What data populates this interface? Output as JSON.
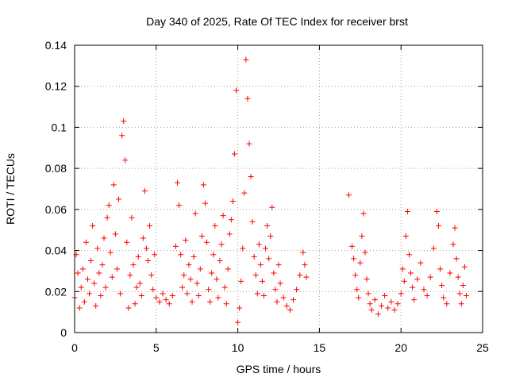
{
  "chart_data": {
    "type": "scatter",
    "title": "Day 340 of 2025, Rate Of TEC Index for receiver brst",
    "xlabel": "GPS time / hours",
    "ylabel": "ROTI / TECUs",
    "xlim": [
      0,
      25
    ],
    "ylim": [
      0,
      0.14
    ],
    "x_ticks": [
      0,
      5,
      10,
      15,
      20,
      25
    ],
    "x_tick_labels": [
      "0",
      "5",
      "10",
      "15",
      "20",
      "25"
    ],
    "y_ticks": [
      0,
      0.02,
      0.04,
      0.06,
      0.08,
      0.1,
      0.12,
      0.14
    ],
    "y_tick_labels": [
      "0",
      "0.02",
      "0.04",
      "0.06",
      "0.08",
      "0.1",
      "0.12",
      "0.14"
    ],
    "grid": true,
    "marker": "plus",
    "color": "#ff0000",
    "series": [
      {
        "points": [
          [
            0.0,
            0.017
          ],
          [
            0.1,
            0.038
          ],
          [
            0.2,
            0.029
          ],
          [
            0.3,
            0.012
          ],
          [
            0.4,
            0.022
          ],
          [
            0.5,
            0.031
          ],
          [
            0.6,
            0.015
          ],
          [
            0.7,
            0.044
          ],
          [
            0.8,
            0.026
          ],
          [
            0.9,
            0.019
          ],
          [
            1.0,
            0.035
          ],
          [
            1.1,
            0.052
          ],
          [
            1.2,
            0.024
          ],
          [
            1.3,
            0.013
          ],
          [
            1.4,
            0.041
          ],
          [
            1.5,
            0.029
          ],
          [
            1.6,
            0.018
          ],
          [
            1.7,
            0.033
          ],
          [
            1.8,
            0.046
          ],
          [
            1.9,
            0.022
          ],
          [
            2.0,
            0.056
          ],
          [
            2.1,
            0.062
          ],
          [
            2.2,
            0.039
          ],
          [
            2.3,
            0.027
          ],
          [
            2.4,
            0.072
          ],
          [
            2.5,
            0.048
          ],
          [
            2.6,
            0.031
          ],
          [
            2.7,
            0.065
          ],
          [
            2.8,
            0.019
          ],
          [
            2.9,
            0.096
          ],
          [
            3.0,
            0.103
          ],
          [
            3.1,
            0.084
          ],
          [
            3.2,
            0.044
          ],
          [
            3.3,
            0.012
          ],
          [
            3.4,
            0.028
          ],
          [
            3.5,
            0.056
          ],
          [
            3.6,
            0.033
          ],
          [
            3.7,
            0.014
          ],
          [
            3.8,
            0.022
          ],
          [
            3.9,
            0.037
          ],
          [
            4.0,
            0.024
          ],
          [
            4.1,
            0.018
          ],
          [
            4.2,
            0.046
          ],
          [
            4.3,
            0.069
          ],
          [
            4.4,
            0.041
          ],
          [
            4.5,
            0.035
          ],
          [
            4.6,
            0.052
          ],
          [
            4.7,
            0.028
          ],
          [
            4.8,
            0.021
          ],
          [
            4.9,
            0.038
          ],
          [
            5.0,
            0.017
          ],
          [
            5.2,
            0.015
          ],
          [
            5.4,
            0.019
          ],
          [
            5.6,
            0.016
          ],
          [
            5.8,
            0.014
          ],
          [
            6.0,
            0.018
          ],
          [
            6.2,
            0.042
          ],
          [
            6.3,
            0.073
          ],
          [
            6.4,
            0.062
          ],
          [
            6.5,
            0.038
          ],
          [
            6.6,
            0.022
          ],
          [
            6.7,
            0.028
          ],
          [
            6.8,
            0.045
          ],
          [
            6.9,
            0.019
          ],
          [
            7.0,
            0.033
          ],
          [
            7.1,
            0.026
          ],
          [
            7.2,
            0.015
          ],
          [
            7.3,
            0.037
          ],
          [
            7.4,
            0.058
          ],
          [
            7.5,
            0.024
          ],
          [
            7.6,
            0.018
          ],
          [
            7.7,
            0.031
          ],
          [
            7.8,
            0.047
          ],
          [
            7.9,
            0.072
          ],
          [
            8.0,
            0.063
          ],
          [
            8.1,
            0.044
          ],
          [
            8.2,
            0.021
          ],
          [
            8.3,
            0.015
          ],
          [
            8.4,
            0.029
          ],
          [
            8.5,
            0.038
          ],
          [
            8.6,
            0.052
          ],
          [
            8.7,
            0.026
          ],
          [
            8.8,
            0.017
          ],
          [
            8.9,
            0.035
          ],
          [
            9.0,
            0.043
          ],
          [
            9.1,
            0.057
          ],
          [
            9.2,
            0.022
          ],
          [
            9.3,
            0.014
          ],
          [
            9.4,
            0.031
          ],
          [
            9.5,
            0.048
          ],
          [
            9.6,
            0.055
          ],
          [
            9.7,
            0.064
          ],
          [
            9.8,
            0.087
          ],
          [
            9.9,
            0.118
          ],
          [
            10.0,
            0.005
          ],
          [
            10.1,
            0.012
          ],
          [
            10.2,
            0.025
          ],
          [
            10.3,
            0.041
          ],
          [
            10.4,
            0.068
          ],
          [
            10.5,
            0.133
          ],
          [
            10.6,
            0.114
          ],
          [
            10.7,
            0.092
          ],
          [
            10.8,
            0.076
          ],
          [
            10.9,
            0.054
          ],
          [
            11.0,
            0.037
          ],
          [
            11.1,
            0.028
          ],
          [
            11.2,
            0.019
          ],
          [
            11.3,
            0.043
          ],
          [
            11.4,
            0.033
          ],
          [
            11.5,
            0.025
          ],
          [
            11.6,
            0.018
          ],
          [
            11.7,
            0.041
          ],
          [
            11.8,
            0.052
          ],
          [
            11.9,
            0.036
          ],
          [
            12.0,
            0.047
          ],
          [
            12.1,
            0.061
          ],
          [
            12.2,
            0.029
          ],
          [
            12.3,
            0.021
          ],
          [
            12.4,
            0.015
          ],
          [
            12.5,
            0.033
          ],
          [
            12.6,
            0.024
          ],
          [
            12.8,
            0.017
          ],
          [
            13.0,
            0.013
          ],
          [
            13.2,
            0.011
          ],
          [
            13.4,
            0.016
          ],
          [
            13.6,
            0.021
          ],
          [
            13.8,
            0.028
          ],
          [
            14.0,
            0.039
          ],
          [
            14.1,
            0.033
          ],
          [
            14.2,
            0.027
          ],
          [
            16.8,
            0.067
          ],
          [
            17.0,
            0.042
          ],
          [
            17.1,
            0.036
          ],
          [
            17.2,
            0.028
          ],
          [
            17.3,
            0.021
          ],
          [
            17.4,
            0.017
          ],
          [
            17.5,
            0.034
          ],
          [
            17.6,
            0.047
          ],
          [
            17.7,
            0.058
          ],
          [
            17.8,
            0.039
          ],
          [
            17.9,
            0.026
          ],
          [
            18.0,
            0.019
          ],
          [
            18.1,
            0.014
          ],
          [
            18.2,
            0.011
          ],
          [
            18.4,
            0.016
          ],
          [
            18.6,
            0.009
          ],
          [
            18.8,
            0.013
          ],
          [
            19.0,
            0.018
          ],
          [
            19.2,
            0.012
          ],
          [
            19.4,
            0.015
          ],
          [
            19.6,
            0.011
          ],
          [
            19.8,
            0.014
          ],
          [
            20.0,
            0.019
          ],
          [
            20.1,
            0.031
          ],
          [
            20.2,
            0.025
          ],
          [
            20.3,
            0.047
          ],
          [
            20.4,
            0.059
          ],
          [
            20.5,
            0.038
          ],
          [
            20.6,
            0.029
          ],
          [
            20.7,
            0.022
          ],
          [
            20.8,
            0.016
          ],
          [
            21.0,
            0.026
          ],
          [
            21.2,
            0.034
          ],
          [
            21.4,
            0.021
          ],
          [
            21.6,
            0.018
          ],
          [
            21.8,
            0.027
          ],
          [
            22.0,
            0.041
          ],
          [
            22.2,
            0.059
          ],
          [
            22.3,
            0.052
          ],
          [
            22.4,
            0.031
          ],
          [
            22.5,
            0.023
          ],
          [
            22.6,
            0.017
          ],
          [
            22.8,
            0.014
          ],
          [
            23.0,
            0.029
          ],
          [
            23.2,
            0.043
          ],
          [
            23.3,
            0.051
          ],
          [
            23.4,
            0.036
          ],
          [
            23.5,
            0.027
          ],
          [
            23.6,
            0.019
          ],
          [
            23.7,
            0.014
          ],
          [
            23.8,
            0.023
          ],
          [
            23.9,
            0.032
          ],
          [
            24.0,
            0.018
          ]
        ]
      }
    ]
  }
}
